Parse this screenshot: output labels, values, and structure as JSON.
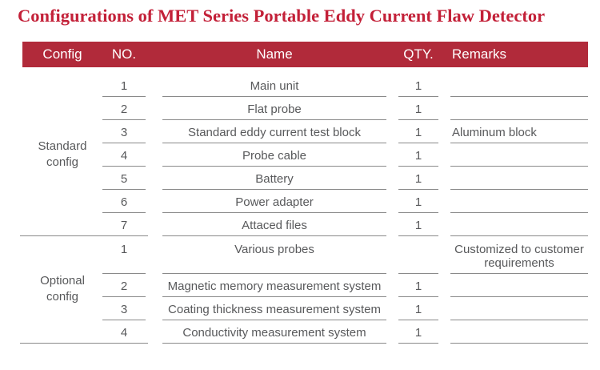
{
  "title": "Configurations of MET Series Portable Eddy Current Flaw Detector",
  "colors": {
    "title_red": "#c32038",
    "header_bg": "#b12a3a",
    "text_gray": "#58595b",
    "line_gray": "#8a8a8a"
  },
  "table": {
    "headers": [
      "Config",
      "NO.",
      "Name",
      "QTY.",
      "Remarks"
    ],
    "sections": [
      {
        "config": "Standard config",
        "rows": [
          {
            "no": "1",
            "name": "Main unit",
            "qty": "1",
            "remarks": ""
          },
          {
            "no": "2",
            "name": "Flat probe",
            "qty": "1",
            "remarks": ""
          },
          {
            "no": "3",
            "name": "Standard eddy current test block",
            "qty": "1",
            "remarks": "Aluminum block"
          },
          {
            "no": "4",
            "name": "Probe cable",
            "qty": "1",
            "remarks": ""
          },
          {
            "no": "5",
            "name": "Battery",
            "qty": "1",
            "remarks": ""
          },
          {
            "no": "6",
            "name": "Power adapter",
            "qty": "1",
            "remarks": ""
          },
          {
            "no": "7",
            "name": "Attaced files",
            "qty": "1",
            "remarks": ""
          }
        ]
      },
      {
        "config": "Optional config",
        "rows": [
          {
            "no": "1",
            "name": "Various probes",
            "qty": "",
            "remarks": "Customized to customer requirements"
          },
          {
            "no": "2",
            "name": "Magnetic memory measurement system",
            "qty": "1",
            "remarks": ""
          },
          {
            "no": "3",
            "name": "Coating thickness measurement system",
            "qty": "1",
            "remarks": ""
          },
          {
            "no": "4",
            "name": "Conductivity measurement system",
            "qty": "1",
            "remarks": ""
          }
        ]
      }
    ]
  }
}
